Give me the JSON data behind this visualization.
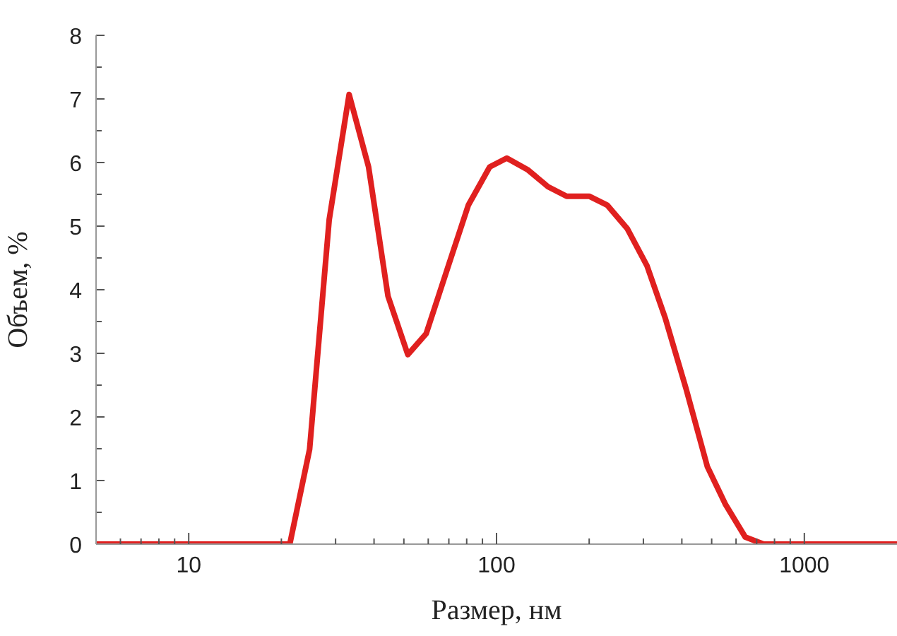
{
  "chart_data": {
    "type": "line",
    "xlabel": "Размер, нм",
    "ylabel": "Объем, %",
    "log": "x",
    "grid": false,
    "legend": false,
    "marker": "none",
    "line_style": "solid",
    "x": [
      5,
      21.3,
      24.7,
      28.6,
      33.2,
      38.4,
      44.4,
      51.5,
      59.1,
      70,
      81,
      95,
      108,
      126,
      147,
      169,
      200,
      229,
      266,
      308,
      353,
      413,
      484,
      555,
      643,
      738,
      2000
    ],
    "series": [
      {
        "color": "#e0201f",
        "values": [
          0,
          0,
          1.49,
          5.1,
          7.07,
          5.93,
          3.9,
          2.98,
          3.31,
          4.4,
          5.33,
          5.93,
          6.07,
          5.89,
          5.62,
          5.47,
          5.47,
          5.33,
          4.96,
          4.38,
          3.56,
          2.44,
          1.22,
          0.62,
          0.11,
          0,
          0
        ]
      }
    ],
    "xlim": [
      5,
      2000
    ],
    "xticks": [
      {
        "value": 6,
        "label": null
      },
      {
        "value": 7,
        "label": null
      },
      {
        "value": 8,
        "label": null
      },
      {
        "value": 9,
        "label": null
      },
      10,
      {
        "value": 20,
        "label": null
      },
      {
        "value": 30,
        "label": null
      },
      {
        "value": 40,
        "label": null
      },
      {
        "value": 50,
        "label": null
      },
      {
        "value": 60,
        "label": null
      },
      {
        "value": 70,
        "label": null
      },
      {
        "value": 80,
        "label": null
      },
      {
        "value": 90,
        "label": null
      },
      100,
      {
        "value": 200,
        "label": null
      },
      {
        "value": 300,
        "label": null
      },
      {
        "value": 400,
        "label": null
      },
      {
        "value": 500,
        "label": null
      },
      {
        "value": 600,
        "label": null
      },
      {
        "value": 700,
        "label": null
      },
      {
        "value": 800,
        "label": null
      },
      {
        "value": 900,
        "label": null
      },
      1000
    ],
    "ylim": [
      0,
      8
    ],
    "yticks": [
      0,
      {
        "value": 0.5,
        "label": null
      },
      1,
      {
        "value": 1.5,
        "label": null
      },
      2,
      {
        "value": 2.5,
        "label": null
      },
      3,
      {
        "value": 3.5,
        "label": null
      },
      4,
      {
        "value": 4.5,
        "label": null
      },
      5,
      {
        "value": 5.5,
        "label": null
      },
      6,
      {
        "value": 6.5,
        "label": null
      },
      7,
      {
        "value": 7.5,
        "label": null
      },
      8
    ]
  }
}
